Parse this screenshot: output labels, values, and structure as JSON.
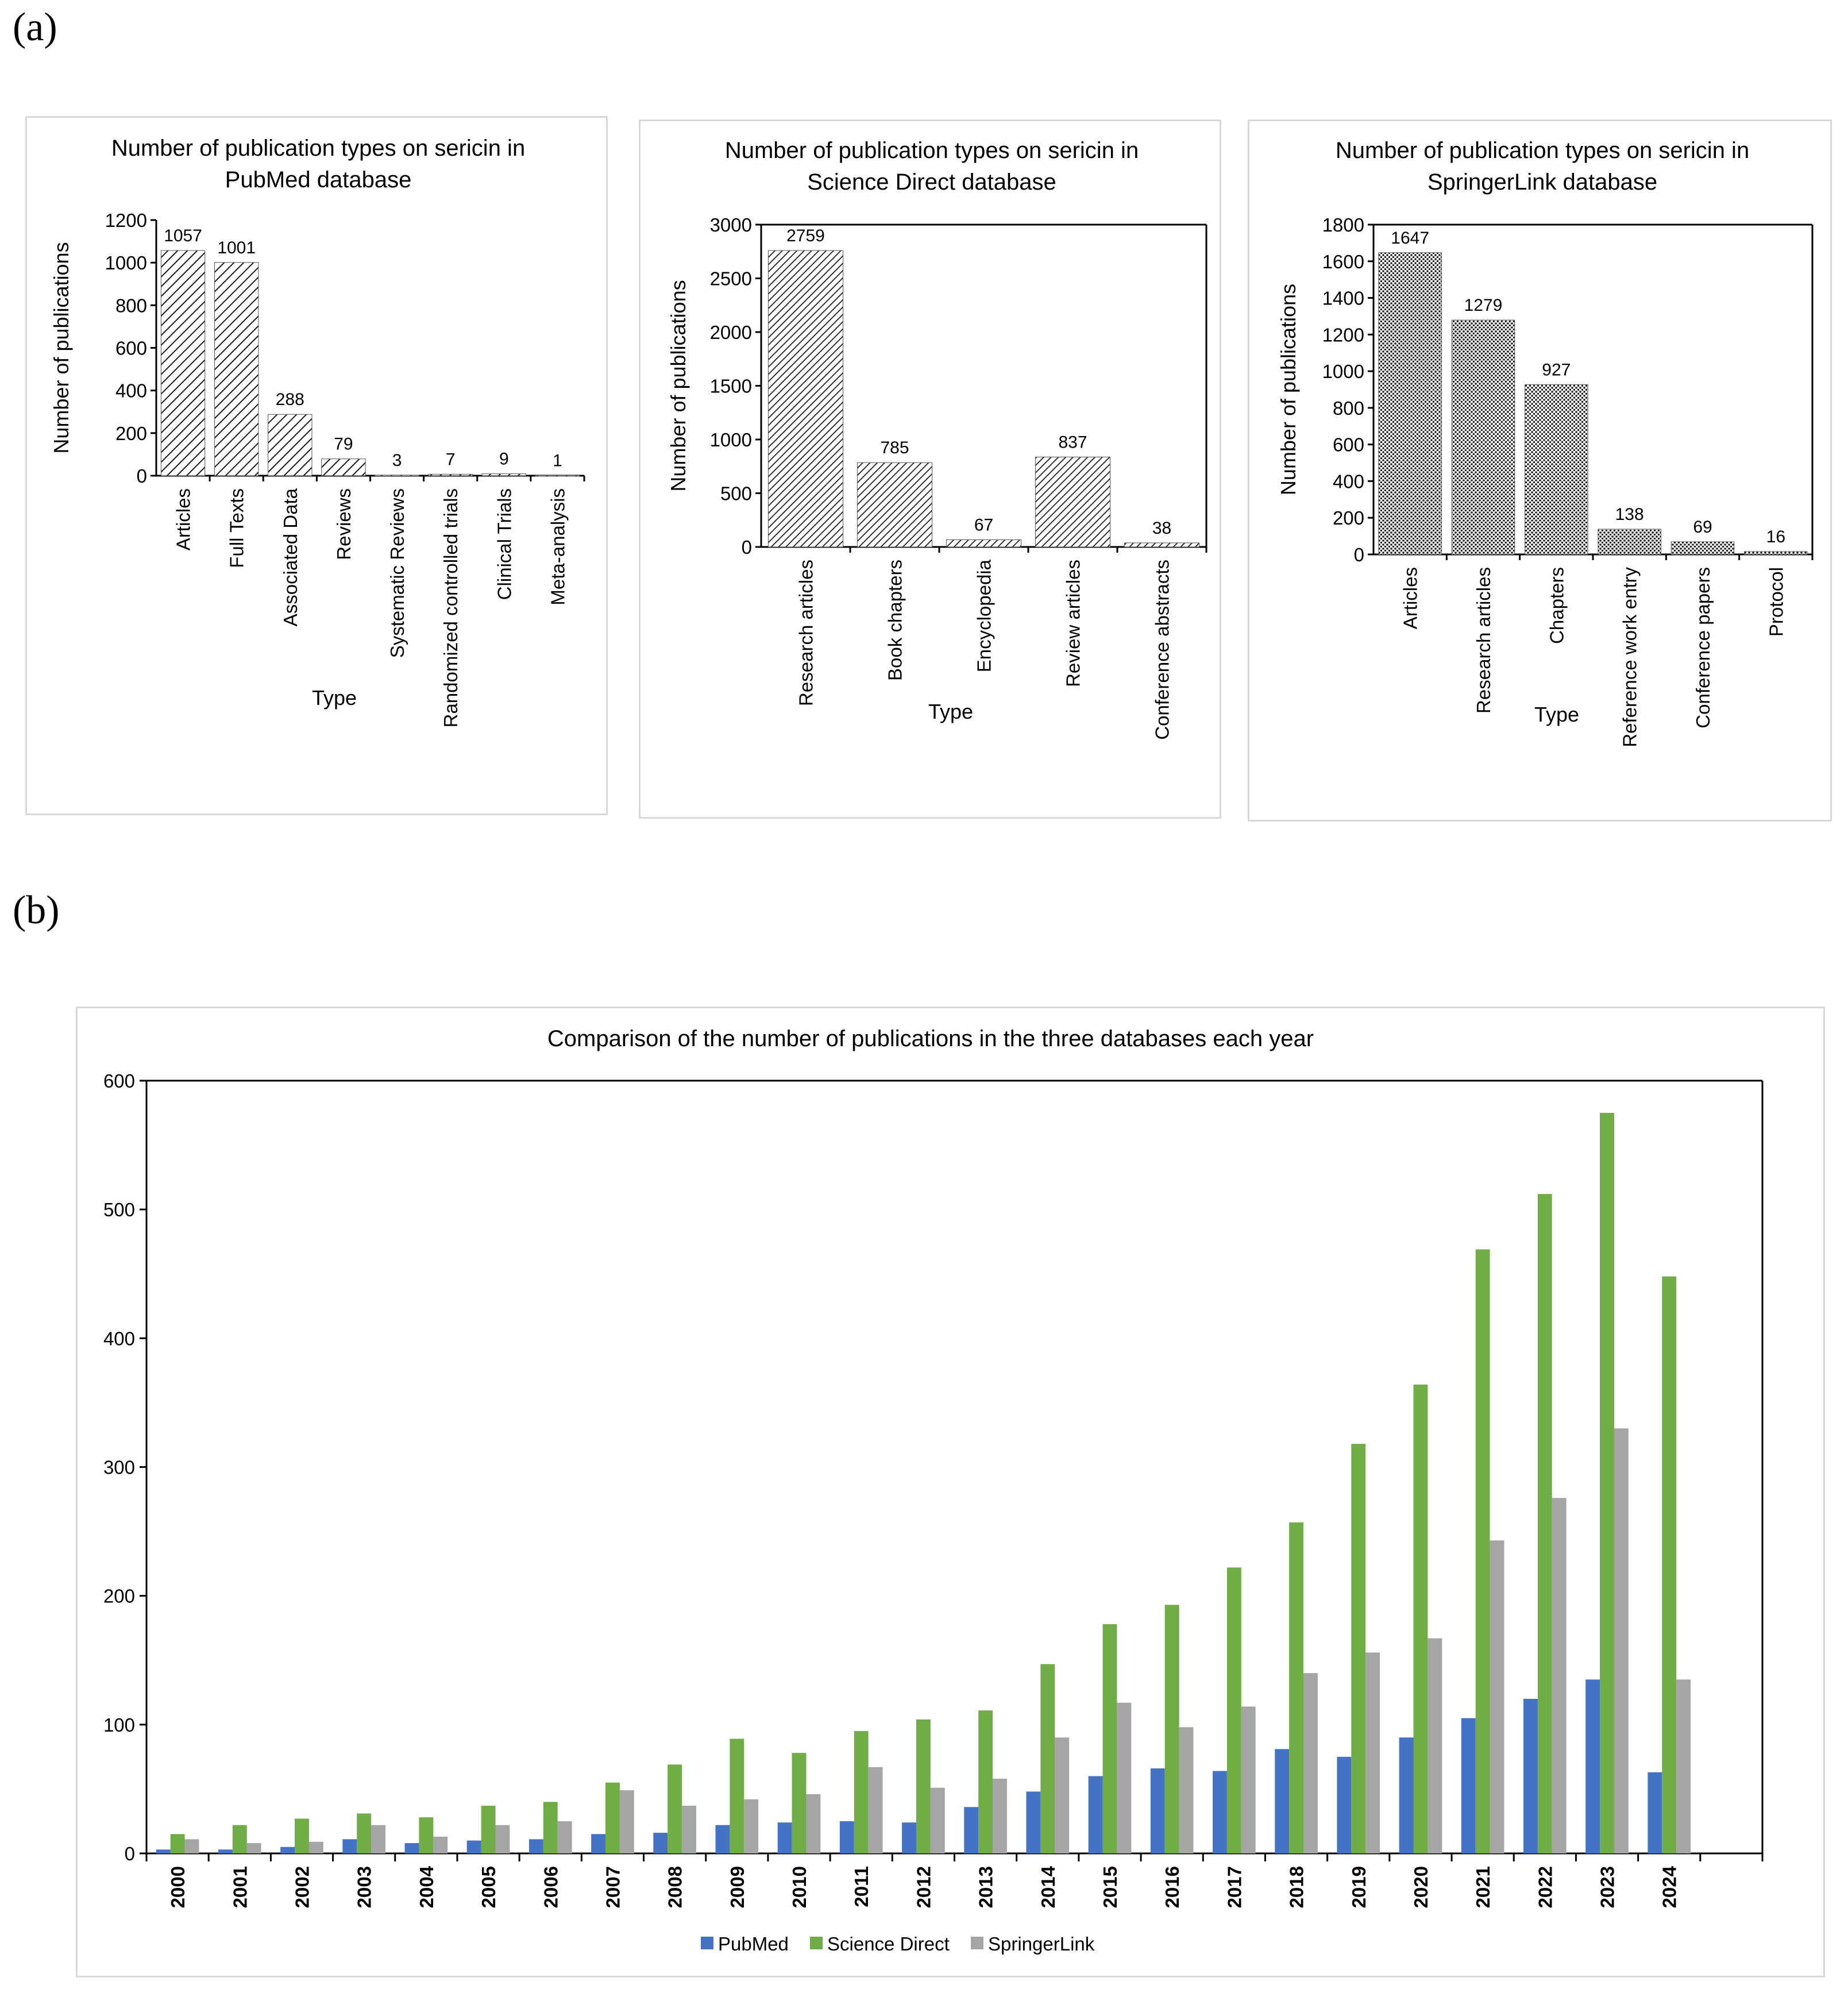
{
  "panel_labels": {
    "a": "(a)",
    "b": "(b)"
  },
  "chart_data": [
    {
      "type": "bar",
      "title_lines": [
        "Number of publication types on sericin in",
        "PubMed database"
      ],
      "xlabel": "Type",
      "ylabel": "Number of publications",
      "categories": [
        "Articles",
        "Full Texts",
        "Associated Data",
        "Reviews",
        "Systematic Reviews",
        "Randomized controlled trials",
        "Clinical Trials",
        "Meta-analysis"
      ],
      "values": [
        1057,
        1001,
        288,
        79,
        3,
        7,
        9,
        1
      ],
      "ylim": [
        0,
        1200
      ],
      "yticks": [
        0,
        200,
        400,
        600,
        800,
        1000,
        1200
      ],
      "pattern": "hatch-wide"
    },
    {
      "type": "bar",
      "title_lines": [
        "Number of publication types on sericin in",
        "Science Direct database"
      ],
      "xlabel": "Type",
      "ylabel": "Number of publications",
      "categories": [
        "Research articles",
        "Book chapters",
        "Encyclopedia",
        "Review articles",
        "Conference abstracts"
      ],
      "values": [
        2759,
        785,
        67,
        837,
        38
      ],
      "ylim": [
        0,
        3000
      ],
      "yticks": [
        0,
        500,
        1000,
        1500,
        2000,
        2500,
        3000
      ],
      "pattern": "hatch-dense"
    },
    {
      "type": "bar",
      "title_lines": [
        "Number of publication types on sericin in",
        "SpringerLink database"
      ],
      "xlabel": "Type",
      "ylabel": "Number of publications",
      "categories": [
        "Articles",
        "Research articles",
        "Chapters",
        "Reference work entry",
        "Conference papers",
        "Protocol"
      ],
      "values": [
        1647,
        1279,
        927,
        138,
        69,
        16
      ],
      "ylim": [
        0,
        1800
      ],
      "yticks": [
        0,
        200,
        400,
        600,
        800,
        1000,
        1200,
        1400,
        1600,
        1800
      ],
      "pattern": "dots"
    },
    {
      "type": "bar",
      "title": "Comparison of the number of publications in the three databases each year",
      "categories": [
        "2000",
        "2001",
        "2002",
        "2003",
        "2004",
        "2005",
        "2006",
        "2007",
        "2008",
        "2009",
        "2010",
        "2011",
        "2012",
        "2013",
        "2014",
        "2015",
        "2016",
        "2017",
        "2018",
        "2019",
        "2020",
        "2021",
        "2022",
        "2023",
        "2024"
      ],
      "series": [
        {
          "name": "PubMed",
          "color": "#4472c4",
          "values": [
            3,
            3,
            5,
            11,
            8,
            10,
            11,
            15,
            16,
            22,
            24,
            25,
            24,
            36,
            48,
            60,
            66,
            64,
            81,
            75,
            90,
            105,
            120,
            135,
            63
          ]
        },
        {
          "name": "Science Direct",
          "color": "#70ad47",
          "values": [
            15,
            22,
            27,
            31,
            28,
            37,
            40,
            55,
            69,
            89,
            78,
            95,
            104,
            111,
            147,
            178,
            193,
            222,
            257,
            318,
            364,
            469,
            512,
            575,
            448
          ]
        },
        {
          "name": "SpringerLink",
          "color": "#a5a5a5",
          "values": [
            11,
            8,
            9,
            22,
            13,
            22,
            25,
            49,
            37,
            42,
            46,
            67,
            51,
            58,
            90,
            117,
            98,
            114,
            140,
            156,
            167,
            243,
            276,
            330,
            135
          ]
        }
      ],
      "ylim": [
        0,
        600
      ],
      "yticks": [
        0,
        100,
        200,
        300,
        400,
        500,
        600
      ],
      "legend_position": "bottom"
    }
  ]
}
